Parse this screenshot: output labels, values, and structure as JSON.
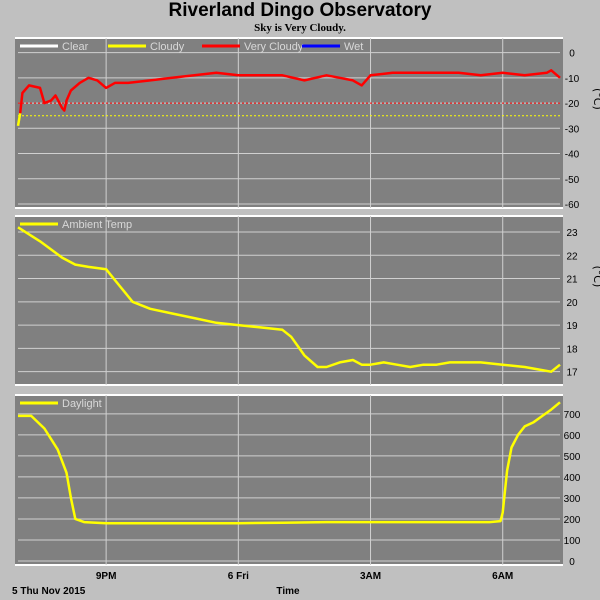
{
  "header": {
    "title": "Riverland Dingo Observatory",
    "status": "Sky is Very Cloudy."
  },
  "footer": {
    "date_label": "5 Thu Nov 2015",
    "x_axis_label": "Time"
  },
  "colors": {
    "background": "#c0c0c0",
    "plot_bg": "#808080",
    "grid": "#d0d0d0",
    "clear": "#ffffff",
    "cloudy": "#ffff00",
    "very_cloudy": "#ff0000",
    "wet": "#0000ff"
  },
  "chart_data": [
    {
      "type": "line",
      "id": "sky",
      "unit": "(°C)",
      "ylim": [
        -60,
        5
      ],
      "yticks": [
        0,
        -10,
        -20,
        -30,
        -40,
        -50,
        -60
      ],
      "xlim": [
        0,
        12.3
      ],
      "grid": true,
      "threshold_lines": [
        {
          "name": "Cloudy",
          "value": -25
        },
        {
          "name": "Very Cloudy",
          "value": -20
        }
      ],
      "legend_position": "top-left",
      "legend": [
        "Clear",
        "Cloudy",
        "Very Cloudy",
        "Wet"
      ],
      "series": [
        {
          "name": "Cloudy",
          "x": [
            0,
            0.05
          ],
          "y": [
            -29,
            -24
          ]
        },
        {
          "name": "Very Cloudy",
          "x": [
            0.05,
            0.1,
            0.25,
            0.5,
            0.6,
            0.75,
            0.85,
            1.0,
            1.05,
            1.1,
            1.2,
            1.4,
            1.6,
            1.8,
            2.0,
            2.2,
            2.5,
            3.0,
            3.5,
            4.0,
            4.5,
            5.0,
            5.5,
            6.0,
            6.5,
            7.0,
            7.3,
            7.6,
            7.8,
            8.0,
            8.5,
            9.0,
            9.5,
            10.0,
            10.5,
            11.0,
            11.5,
            12.0,
            12.1,
            12.3
          ],
          "y": [
            -24,
            -16,
            -13,
            -14,
            -20,
            -19,
            -17,
            -22,
            -23,
            -19,
            -15,
            -12,
            -10,
            -11,
            -14,
            -12,
            -12,
            -11,
            -10,
            -9,
            -8,
            -9,
            -9,
            -9,
            -11,
            -9,
            -10,
            -11,
            -13,
            -9,
            -8,
            -8,
            -8,
            -8,
            -9,
            -8,
            -9,
            -8,
            -7,
            -10
          ]
        },
        {
          "name": "Wet",
          "x": [],
          "y": []
        },
        {
          "name": "Clear",
          "x": [],
          "y": []
        }
      ]
    },
    {
      "type": "line",
      "id": "ambient",
      "unit": "(°C)",
      "ylim": [
        16.6,
        23.6
      ],
      "yticks": [
        23,
        22,
        21,
        20,
        19,
        18,
        17
      ],
      "xlim": [
        0,
        12.3
      ],
      "grid": true,
      "legend_position": "top-left",
      "series": [
        {
          "name": "Ambient Temp",
          "x": [
            0,
            0.5,
            1.0,
            1.3,
            1.6,
            2.0,
            2.3,
            2.6,
            3.0,
            3.5,
            4.0,
            4.5,
            5.0,
            5.5,
            6.0,
            6.2,
            6.5,
            6.8,
            7.0,
            7.3,
            7.6,
            7.8,
            8.0,
            8.3,
            8.6,
            8.9,
            9.2,
            9.5,
            9.8,
            10.0,
            10.5,
            11.0,
            11.5,
            11.8,
            12.1,
            12.3
          ],
          "y": [
            23.2,
            22.6,
            21.9,
            21.6,
            21.5,
            21.4,
            20.7,
            20.0,
            19.7,
            19.5,
            19.3,
            19.1,
            19.0,
            18.9,
            18.8,
            18.5,
            17.7,
            17.2,
            17.2,
            17.4,
            17.5,
            17.3,
            17.3,
            17.4,
            17.3,
            17.2,
            17.3,
            17.3,
            17.4,
            17.4,
            17.4,
            17.3,
            17.2,
            17.1,
            17.0,
            17.3
          ]
        }
      ]
    },
    {
      "type": "line",
      "id": "daylight",
      "ylim": [
        0,
        780
      ],
      "yticks": [
        700,
        600,
        500,
        400,
        300,
        200,
        100,
        0
      ],
      "xlim": [
        0,
        12.3
      ],
      "grid": true,
      "legend_position": "top-left",
      "series": [
        {
          "name": "Daylight",
          "x": [
            0,
            0.3,
            0.6,
            0.9,
            1.1,
            1.2,
            1.3,
            1.5,
            2.0,
            3.0,
            4.0,
            5.0,
            6.0,
            7.0,
            8.0,
            9.0,
            10.0,
            10.7,
            10.95,
            11.0,
            11.1,
            11.2,
            11.35,
            11.5,
            11.7,
            11.9,
            12.1,
            12.3
          ],
          "y": [
            690,
            690,
            630,
            530,
            420,
            300,
            200,
            185,
            180,
            180,
            180,
            180,
            182,
            185,
            185,
            185,
            185,
            185,
            190,
            230,
            430,
            540,
            600,
            640,
            660,
            690,
            720,
            755
          ]
        }
      ]
    }
  ],
  "x_axis": {
    "ticks": [
      {
        "label": "9PM",
        "value": 2.0
      },
      {
        "label": "6 Fri",
        "value": 5.0
      },
      {
        "label": "3AM",
        "value": 8.0
      },
      {
        "label": "6AM",
        "value": 11.0
      }
    ]
  }
}
